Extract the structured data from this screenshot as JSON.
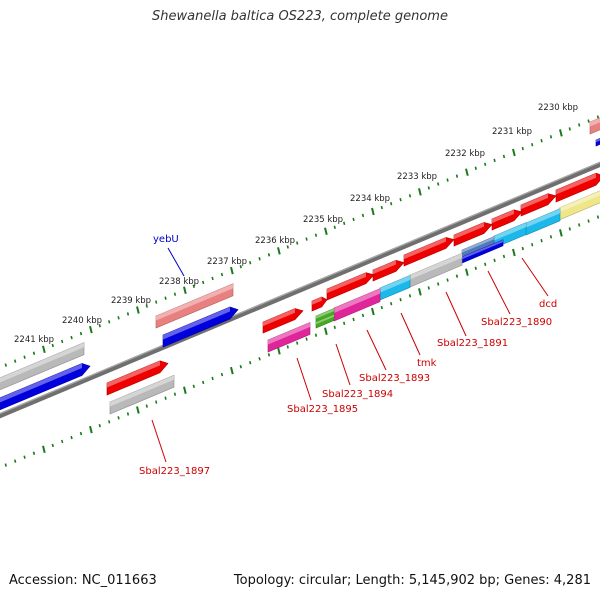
{
  "title": "Shewanella baltica OS223, complete genome",
  "footer": {
    "accession": "Accession: NC_011663",
    "topology": "Topology: circular; Length: 5,145,902 bp; Genes: 4,281"
  },
  "kbp_labels": [
    "2230 kbp",
    "2231 kbp",
    "2232 kbp",
    "2233 kbp",
    "2234 kbp",
    "2235 kbp",
    "2236 kbp",
    "2237 kbp",
    "2238 kbp",
    "2239 kbp",
    "2240 kbp",
    "2241 kbp"
  ],
  "gene_labels": [
    "yebU",
    "dcd",
    "Sbal223_1890",
    "Sbal223_1891",
    "tmk",
    "Sbal223_1893",
    "Sbal223_1894",
    "Sbal223_1895",
    "Sbal223_1897"
  ],
  "colors": {
    "forward_gene": "#ee0000",
    "backbone": "#8a8a8a",
    "tick": "#1a7a1a",
    "label_red": "#cc0000",
    "label_blue": "#0000cc",
    "blue": "#0000dd",
    "gray": "#b9b9b9",
    "salmon": "#e98080",
    "magenta": "#e0259a",
    "cyan": "#1cb8ea",
    "yellow": "#efe68a",
    "green": "#44aa22",
    "steel": "#4f7ab8"
  }
}
